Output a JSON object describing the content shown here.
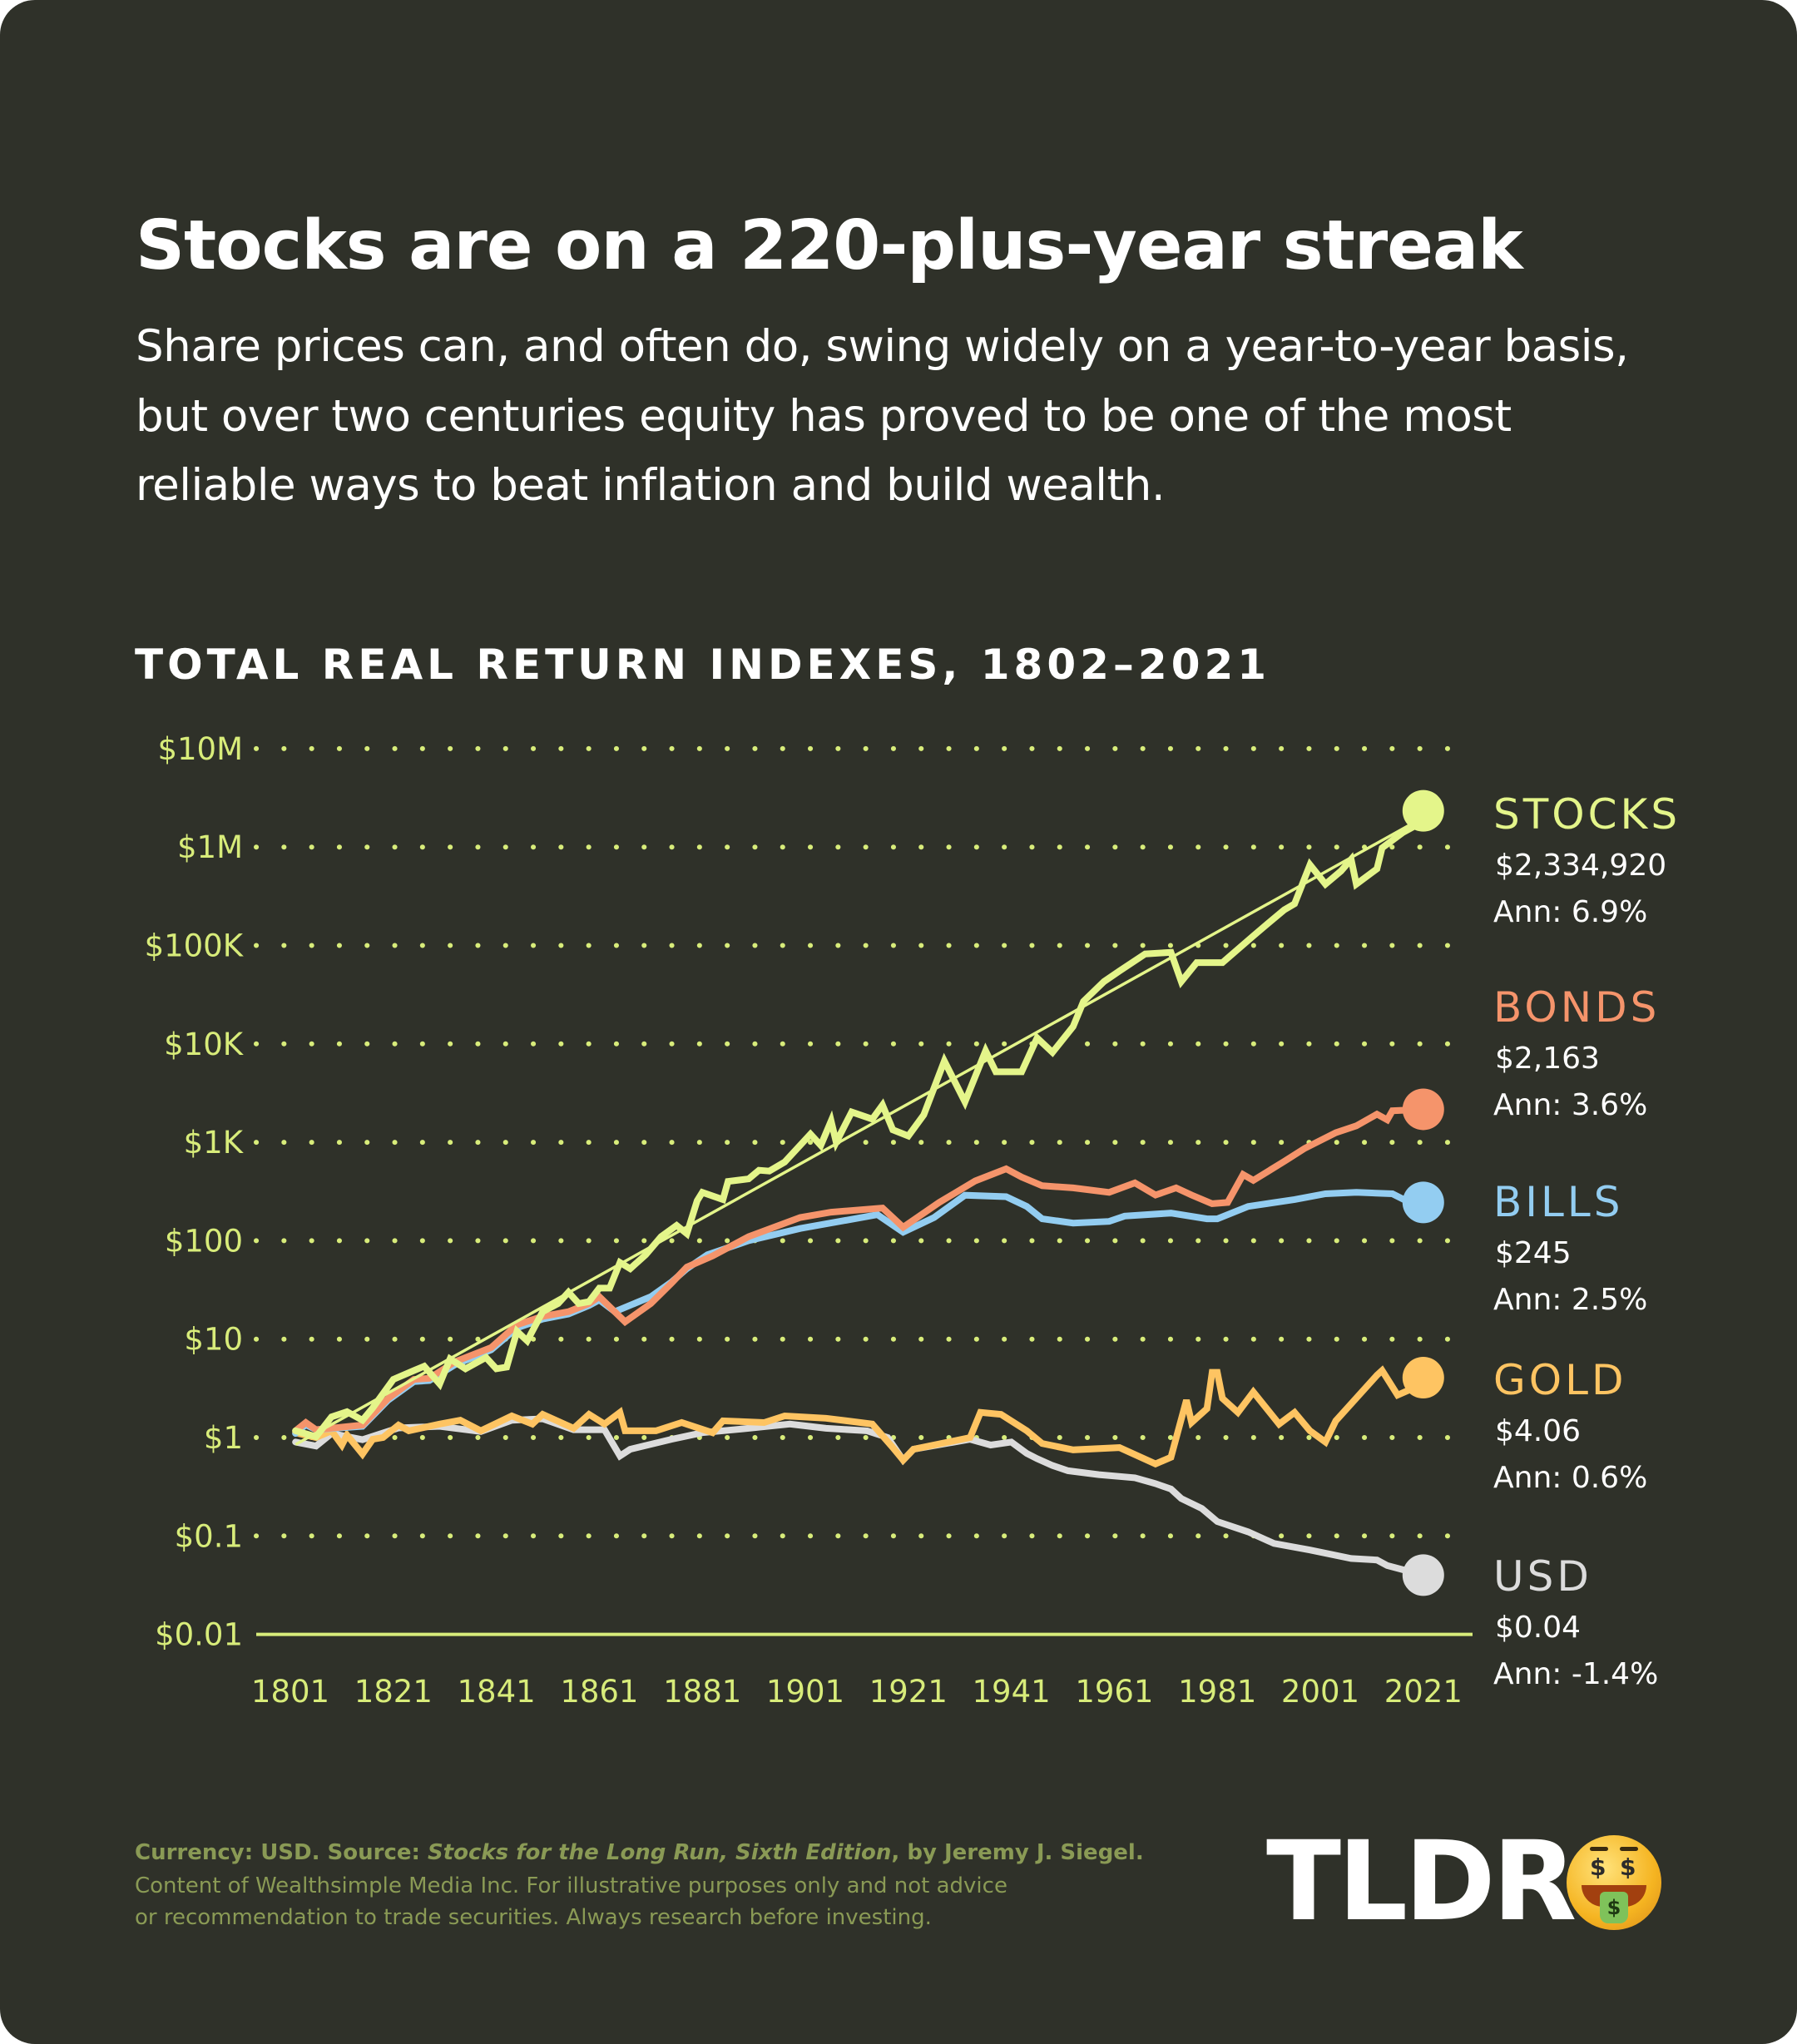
{
  "header": {
    "title": "Stocks are on a 220-plus-year streak",
    "subtitle_lines": [
      "Share prices can, and often do, swing widely on a year-to-year basis,",
      "but over two centuries equity has proved to be one of the most",
      "reliable ways to beat inflation and build wealth."
    ]
  },
  "colors": {
    "background": "#2f3129",
    "axis": "#d8ec7a",
    "stocks": "#e4f58a",
    "bonds": "#f5946b",
    "bills": "#93cdf1",
    "gold": "#fec462",
    "usd": "#dcdcdc",
    "footer": "#8a9a55"
  },
  "chart_data": {
    "type": "line",
    "title": "TOTAL REAL RETURN INDEXES, 1802–2021",
    "xlabel": "",
    "ylabel": "",
    "yscale": "log",
    "ylim": [
      0.01,
      10000000
    ],
    "xlim": [
      1801,
      2021
    ],
    "grid": true,
    "y_ticks": [
      {
        "value": 10000000,
        "label": "$10M"
      },
      {
        "value": 1000000,
        "label": "$1M"
      },
      {
        "value": 100000,
        "label": "$100K"
      },
      {
        "value": 10000,
        "label": "$10K"
      },
      {
        "value": 1000,
        "label": "$1K"
      },
      {
        "value": 100,
        "label": "$100"
      },
      {
        "value": 10,
        "label": "$10"
      },
      {
        "value": 1,
        "label": "$1"
      },
      {
        "value": 0.1,
        "label": "$0.1"
      },
      {
        "value": 0.01,
        "label": "$0.01"
      }
    ],
    "x_ticks": [
      {
        "value": 1801,
        "label": "1801"
      },
      {
        "value": 1821,
        "label": "1821"
      },
      {
        "value": 1841,
        "label": "1841"
      },
      {
        "value": 1861,
        "label": "1861"
      },
      {
        "value": 1881,
        "label": "1881"
      },
      {
        "value": 1901,
        "label": "1901"
      },
      {
        "value": 1921,
        "label": "1921"
      },
      {
        "value": 1941,
        "label": "1941"
      },
      {
        "value": 1961,
        "label": "1961"
      },
      {
        "value": 1981,
        "label": "1981"
      },
      {
        "value": 2001,
        "label": "2001"
      },
      {
        "value": 2021,
        "label": "2021"
      }
    ],
    "trend": {
      "series": "stocks",
      "points": [
        [
          1802,
          0.85
        ],
        [
          2021,
          2000000
        ]
      ]
    },
    "series": [
      {
        "key": "usd",
        "name": "USD",
        "final_label": "$0.04",
        "annual_label": "Ann: -1.4%",
        "points": [
          [
            1802,
            0.9
          ],
          [
            1806,
            0.82
          ],
          [
            1809,
            1.1
          ],
          [
            1815,
            0.95
          ],
          [
            1822,
            1.25
          ],
          [
            1830,
            1.3
          ],
          [
            1838,
            1.15
          ],
          [
            1844,
            1.5
          ],
          [
            1850,
            1.55
          ],
          [
            1856,
            1.2
          ],
          [
            1862,
            1.2
          ],
          [
            1865,
            0.65
          ],
          [
            1867,
            0.76
          ],
          [
            1875,
            0.96
          ],
          [
            1881,
            1.12
          ],
          [
            1890,
            1.24
          ],
          [
            1898,
            1.37
          ],
          [
            1905,
            1.24
          ],
          [
            1913,
            1.17
          ],
          [
            1917,
            1.0
          ],
          [
            1920,
            0.59
          ],
          [
            1922,
            0.76
          ],
          [
            1933,
            0.96
          ],
          [
            1937,
            0.84
          ],
          [
            1941,
            0.9
          ],
          [
            1944,
            0.69
          ],
          [
            1946,
            0.61
          ],
          [
            1949,
            0.52
          ],
          [
            1952,
            0.46
          ],
          [
            1958,
            0.42
          ],
          [
            1965,
            0.39
          ],
          [
            1969,
            0.34
          ],
          [
            1972,
            0.3
          ],
          [
            1974,
            0.24
          ],
          [
            1978,
            0.19
          ],
          [
            1981,
            0.14
          ],
          [
            1987,
            0.11
          ],
          [
            1992,
            0.084
          ],
          [
            1999,
            0.072
          ],
          [
            2007,
            0.059
          ],
          [
            2012,
            0.057
          ],
          [
            2014,
            0.05
          ],
          [
            2021,
            0.04
          ]
        ]
      },
      {
        "key": "gold",
        "name": "GOLD",
        "final_label": "$4.06",
        "annual_label": "Ann: 0.6%",
        "points": [
          [
            1802,
            1.12
          ],
          [
            1806,
            1.0
          ],
          [
            1809,
            1.17
          ],
          [
            1811,
            0.84
          ],
          [
            1812,
            1.06
          ],
          [
            1815,
            0.68
          ],
          [
            1817,
            0.96
          ],
          [
            1819,
            1.0
          ],
          [
            1822,
            1.34
          ],
          [
            1824,
            1.17
          ],
          [
            1830,
            1.37
          ],
          [
            1834,
            1.5
          ],
          [
            1838,
            1.17
          ],
          [
            1844,
            1.66
          ],
          [
            1848,
            1.37
          ],
          [
            1850,
            1.72
          ],
          [
            1856,
            1.24
          ],
          [
            1859,
            1.72
          ],
          [
            1862,
            1.37
          ],
          [
            1865,
            1.8
          ],
          [
            1866,
            1.17
          ],
          [
            1872,
            1.17
          ],
          [
            1877,
            1.42
          ],
          [
            1883,
            1.12
          ],
          [
            1885,
            1.48
          ],
          [
            1893,
            1.42
          ],
          [
            1897,
            1.66
          ],
          [
            1905,
            1.57
          ],
          [
            1914,
            1.37
          ],
          [
            1918,
            0.79
          ],
          [
            1920,
            0.59
          ],
          [
            1922,
            0.76
          ],
          [
            1933,
            1.0
          ],
          [
            1935,
            1.8
          ],
          [
            1939,
            1.72
          ],
          [
            1944,
            1.17
          ],
          [
            1947,
            0.87
          ],
          [
            1953,
            0.75
          ],
          [
            1962,
            0.79
          ],
          [
            1969,
            0.54
          ],
          [
            1972,
            0.63
          ],
          [
            1975,
            2.4
          ],
          [
            1976,
            1.42
          ],
          [
            1979,
            1.97
          ],
          [
            1980,
            4.6
          ],
          [
            1981,
            4.6
          ],
          [
            1982,
            2.5
          ],
          [
            1985,
            1.8
          ],
          [
            1988,
            2.9
          ],
          [
            1993,
            1.37
          ],
          [
            1996,
            1.8
          ],
          [
            1999,
            1.17
          ],
          [
            2002,
            0.9
          ],
          [
            2004,
            1.48
          ],
          [
            2012,
            4.3
          ],
          [
            2013,
            4.8
          ],
          [
            2016,
            2.7
          ],
          [
            2018,
            3.0
          ],
          [
            2021,
            4.06
          ]
        ]
      },
      {
        "key": "bills",
        "name": "BILLS",
        "final_label": "$245",
        "annual_label": "Ann: 2.5%",
        "points": [
          [
            1802,
            1.1
          ],
          [
            1804,
            1.35
          ],
          [
            1806,
            1.2
          ],
          [
            1815,
            1.3
          ],
          [
            1820,
            2.4
          ],
          [
            1825,
            3.7
          ],
          [
            1828,
            3.8
          ],
          [
            1833,
            5.5
          ],
          [
            1840,
            7.8
          ],
          [
            1845,
            13
          ],
          [
            1850,
            16
          ],
          [
            1855,
            18
          ],
          [
            1859,
            22
          ],
          [
            1861,
            25
          ],
          [
            1864,
            19
          ],
          [
            1871,
            27
          ],
          [
            1875,
            38
          ],
          [
            1878,
            52
          ],
          [
            1882,
            72
          ],
          [
            1890,
            100
          ],
          [
            1900,
            133
          ],
          [
            1915,
            184
          ],
          [
            1920,
            122
          ],
          [
            1926,
            172
          ],
          [
            1932,
            290
          ],
          [
            1940,
            280
          ],
          [
            1944,
            223
          ],
          [
            1947,
            167
          ],
          [
            1953,
            151
          ],
          [
            1960,
            157
          ],
          [
            1963,
            178
          ],
          [
            1972,
            191
          ],
          [
            1979,
            167
          ],
          [
            1981,
            167
          ],
          [
            1987,
            223
          ],
          [
            1996,
            262
          ],
          [
            2002,
            300
          ],
          [
            2008,
            310
          ],
          [
            2015,
            300
          ],
          [
            2018,
            250
          ],
          [
            2021,
            245
          ]
        ]
      },
      {
        "key": "bonds",
        "name": "BONDS",
        "final_label": "$2,163",
        "annual_label": "Ann: 3.6%",
        "points": [
          [
            1802,
            1.17
          ],
          [
            1804,
            1.42
          ],
          [
            1806,
            1.2
          ],
          [
            1815,
            1.34
          ],
          [
            1820,
            2.5
          ],
          [
            1825,
            3.9
          ],
          [
            1828,
            4.0
          ],
          [
            1833,
            5.9
          ],
          [
            1840,
            8.2
          ],
          [
            1845,
            14
          ],
          [
            1850,
            17
          ],
          [
            1855,
            19
          ],
          [
            1859,
            23
          ],
          [
            1861,
            27
          ],
          [
            1866,
            15
          ],
          [
            1871,
            23
          ],
          [
            1875,
            37
          ],
          [
            1878,
            54
          ],
          [
            1883,
            70
          ],
          [
            1890,
            110
          ],
          [
            1900,
            172
          ],
          [
            1906,
            195
          ],
          [
            1916,
            215
          ],
          [
            1920,
            137
          ],
          [
            1927,
            245
          ],
          [
            1934,
            405
          ],
          [
            1940,
            537
          ],
          [
            1943,
            443
          ],
          [
            1947,
            362
          ],
          [
            1953,
            344
          ],
          [
            1960,
            310
          ],
          [
            1965,
            387
          ],
          [
            1969,
            291
          ],
          [
            1973,
            344
          ],
          [
            1976,
            291
          ],
          [
            1980,
            238
          ],
          [
            1983,
            245
          ],
          [
            1986,
            470
          ],
          [
            1988,
            410
          ],
          [
            1994,
            640
          ],
          [
            1998,
            870
          ],
          [
            2004,
            1250
          ],
          [
            2008,
            1470
          ],
          [
            2012,
            1930
          ],
          [
            2014,
            1690
          ],
          [
            2015,
            2090
          ],
          [
            2021,
            2163
          ]
        ]
      },
      {
        "key": "stocks",
        "name": "STOCKS",
        "final_label": "$2,334,920",
        "annual_label": "Ann: 6.9%",
        "points": [
          [
            1802,
            1.17
          ],
          [
            1806,
            1.02
          ],
          [
            1809,
            1.62
          ],
          [
            1812,
            1.83
          ],
          [
            1815,
            1.5
          ],
          [
            1817,
            2.0
          ],
          [
            1821,
            3.9
          ],
          [
            1825,
            4.8
          ],
          [
            1827,
            5.3
          ],
          [
            1830,
            3.5
          ],
          [
            1832,
            6.3
          ],
          [
            1835,
            5.0
          ],
          [
            1839,
            6.5
          ],
          [
            1841,
            5.0
          ],
          [
            1843,
            5.2
          ],
          [
            1845,
            12
          ],
          [
            1847,
            9.6
          ],
          [
            1850,
            19
          ],
          [
            1853,
            23
          ],
          [
            1855,
            30
          ],
          [
            1857,
            23
          ],
          [
            1859,
            24
          ],
          [
            1861,
            33
          ],
          [
            1863,
            33
          ],
          [
            1865,
            60
          ],
          [
            1867,
            52
          ],
          [
            1870,
            72
          ],
          [
            1873,
            110
          ],
          [
            1876,
            143
          ],
          [
            1878,
            118
          ],
          [
            1880,
            255
          ],
          [
            1881,
            310
          ],
          [
            1885,
            262
          ],
          [
            1886,
            400
          ],
          [
            1890,
            425
          ],
          [
            1892,
            520
          ],
          [
            1894,
            510
          ],
          [
            1897,
            630
          ],
          [
            1902,
            1210
          ],
          [
            1904,
            930
          ],
          [
            1906,
            1650
          ],
          [
            1907,
            1000
          ],
          [
            1910,
            2030
          ],
          [
            1914,
            1720
          ],
          [
            1916,
            2390
          ],
          [
            1918,
            1340
          ],
          [
            1921,
            1160
          ],
          [
            1924,
            1900
          ],
          [
            1928,
            6700
          ],
          [
            1932,
            2570
          ],
          [
            1936,
            8500
          ],
          [
            1938,
            5200
          ],
          [
            1943,
            5200
          ],
          [
            1946,
            11500
          ],
          [
            1949,
            8200
          ],
          [
            1953,
            15000
          ],
          [
            1955,
            27000
          ],
          [
            1959,
            43000
          ],
          [
            1962,
            55000
          ],
          [
            1967,
            82000
          ],
          [
            1972,
            85000
          ],
          [
            1974,
            43000
          ],
          [
            1977,
            67000
          ],
          [
            1982,
            67000
          ],
          [
            1988,
            125000
          ],
          [
            1991,
            170000
          ],
          [
            1994,
            230000
          ],
          [
            1996,
            265000
          ],
          [
            1999,
            660000
          ],
          [
            2002,
            420000
          ],
          [
            2005,
            570000
          ],
          [
            2007,
            750000
          ],
          [
            2008,
            420000
          ],
          [
            2012,
            600000
          ],
          [
            2013,
            980000
          ],
          [
            2017,
            1400000
          ],
          [
            2019,
            1600000
          ],
          [
            2021,
            2334920
          ]
        ]
      }
    ]
  },
  "footer": {
    "source_prefix": "Currency: USD. Source: ",
    "source_title": "Stocks for the Long Run, Sixth Edition",
    "source_suffix": ", by Jeremy J. Siegel.",
    "line2": "Content of Wealthsimple Media Inc. For illustrative purposes only and not advice",
    "line3": "or recommendation to trade securities. Always research before investing."
  },
  "logo": {
    "text": "TLDR",
    "emoji": "money-mouth-face"
  }
}
